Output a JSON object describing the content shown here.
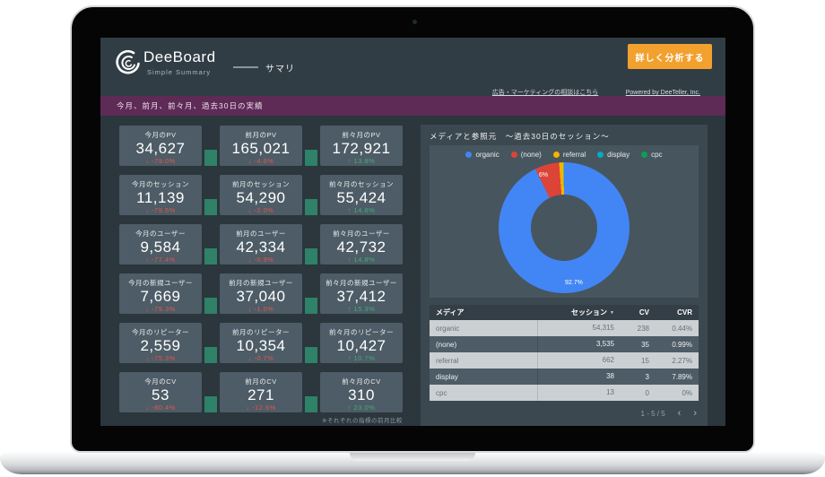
{
  "header": {
    "logo_title": "DeeBoard",
    "logo_subtitle": "Simple Summary",
    "page_label": "サマリ",
    "analyze_button": "詳しく分析する",
    "consult_link": "広告・マーケティングの相談はこちら",
    "powered_link": "Powered by DeeTeller, Inc."
  },
  "section_bar": {
    "title": "今月、前月、前々月、過去30日の実績"
  },
  "metrics": {
    "note": "※それぞれの指標の前月比較",
    "cards": [
      {
        "label": "今月のPV",
        "value": "34,627",
        "delta": "-79.0%",
        "dir": "down"
      },
      {
        "label": "前月のPV",
        "value": "165,021",
        "delta": "-4.6%",
        "dir": "down"
      },
      {
        "label": "前々月のPV",
        "value": "172,921",
        "delta": "13.8%",
        "dir": "up"
      },
      {
        "label": "今月のセッション",
        "value": "11,139",
        "delta": "-79.5%",
        "dir": "down"
      },
      {
        "label": "前月のセッション",
        "value": "54,290",
        "delta": "-2.0%",
        "dir": "down"
      },
      {
        "label": "前々月のセッション",
        "value": "55,424",
        "delta": "14.6%",
        "dir": "up"
      },
      {
        "label": "今月のユーザー",
        "value": "9,584",
        "delta": "-77.4%",
        "dir": "down"
      },
      {
        "label": "前月のユーザー",
        "value": "42,334",
        "delta": "-0.9%",
        "dir": "down"
      },
      {
        "label": "前々月のユーザー",
        "value": "42,732",
        "delta": "14.8%",
        "dir": "up"
      },
      {
        "label": "今月の新規ユーザー",
        "value": "7,669",
        "delta": "-79.3%",
        "dir": "down"
      },
      {
        "label": "前月の新規ユーザー",
        "value": "37,040",
        "delta": "-1.0%",
        "dir": "down"
      },
      {
        "label": "前々月の新規ユーザー",
        "value": "37,412",
        "delta": "15.3%",
        "dir": "up"
      },
      {
        "label": "今月のリピーター",
        "value": "2,559",
        "delta": "-75.3%",
        "dir": "down"
      },
      {
        "label": "前月のリピーター",
        "value": "10,354",
        "delta": "-0.7%",
        "dir": "down"
      },
      {
        "label": "前々月のリピーター",
        "value": "10,427",
        "delta": "10.7%",
        "dir": "up"
      },
      {
        "label": "今月のCV",
        "value": "53",
        "delta": "-80.4%",
        "dir": "down"
      },
      {
        "label": "前月のCV",
        "value": "271",
        "delta": "-12.6%",
        "dir": "down"
      },
      {
        "label": "前々月のCV",
        "value": "310",
        "delta": "23.0%",
        "dir": "up"
      }
    ]
  },
  "media_panel": {
    "title": "メディアと参照元　～過去30日のセッション～",
    "donut_labels": {
      "organic": "92.7%",
      "none": "6%"
    },
    "table": {
      "headers": [
        "メディア",
        "セッション",
        "CV",
        "CVR"
      ],
      "sort_column": "セッション",
      "sort_arrow": "▼",
      "rows": [
        {
          "media": "organic",
          "sessions": "54,315",
          "cv": "238",
          "cvr": "0.44%"
        },
        {
          "media": "(none)",
          "sessions": "3,535",
          "cv": "35",
          "cvr": "0.99%"
        },
        {
          "media": "referral",
          "sessions": "662",
          "cv": "15",
          "cvr": "2.27%"
        },
        {
          "media": "display",
          "sessions": "38",
          "cv": "3",
          "cvr": "7.89%"
        },
        {
          "media": "cpc",
          "sessions": "13",
          "cv": "0",
          "cvr": "0%"
        }
      ]
    },
    "pagination": {
      "label": "1 - 5 / 5",
      "prev": "‹",
      "next": "›"
    }
  },
  "chart_data": {
    "type": "pie",
    "donut": true,
    "title": "メディアと参照元 ～過去30日のセッション～",
    "categories": [
      "organic",
      "(none)",
      "referral",
      "display",
      "cpc"
    ],
    "values": [
      54315,
      3535,
      662,
      38,
      13
    ],
    "percent_labels": [
      "92.7%",
      "6%"
    ],
    "colors": [
      "#4285f4",
      "#db4437",
      "#f4b400",
      "#00acc1",
      "#0f9d58"
    ],
    "legend_position": "top",
    "hole_color": "#47555e"
  },
  "colors": {
    "accent_orange": "#f2a02e",
    "section_purple": "#5e2a56",
    "card_bg": "#4d5c66",
    "delta_down": "#e2574c",
    "delta_up": "#3fae7a",
    "connector_green": "#2f8168",
    "dashboard_bg": "#2b363d"
  }
}
